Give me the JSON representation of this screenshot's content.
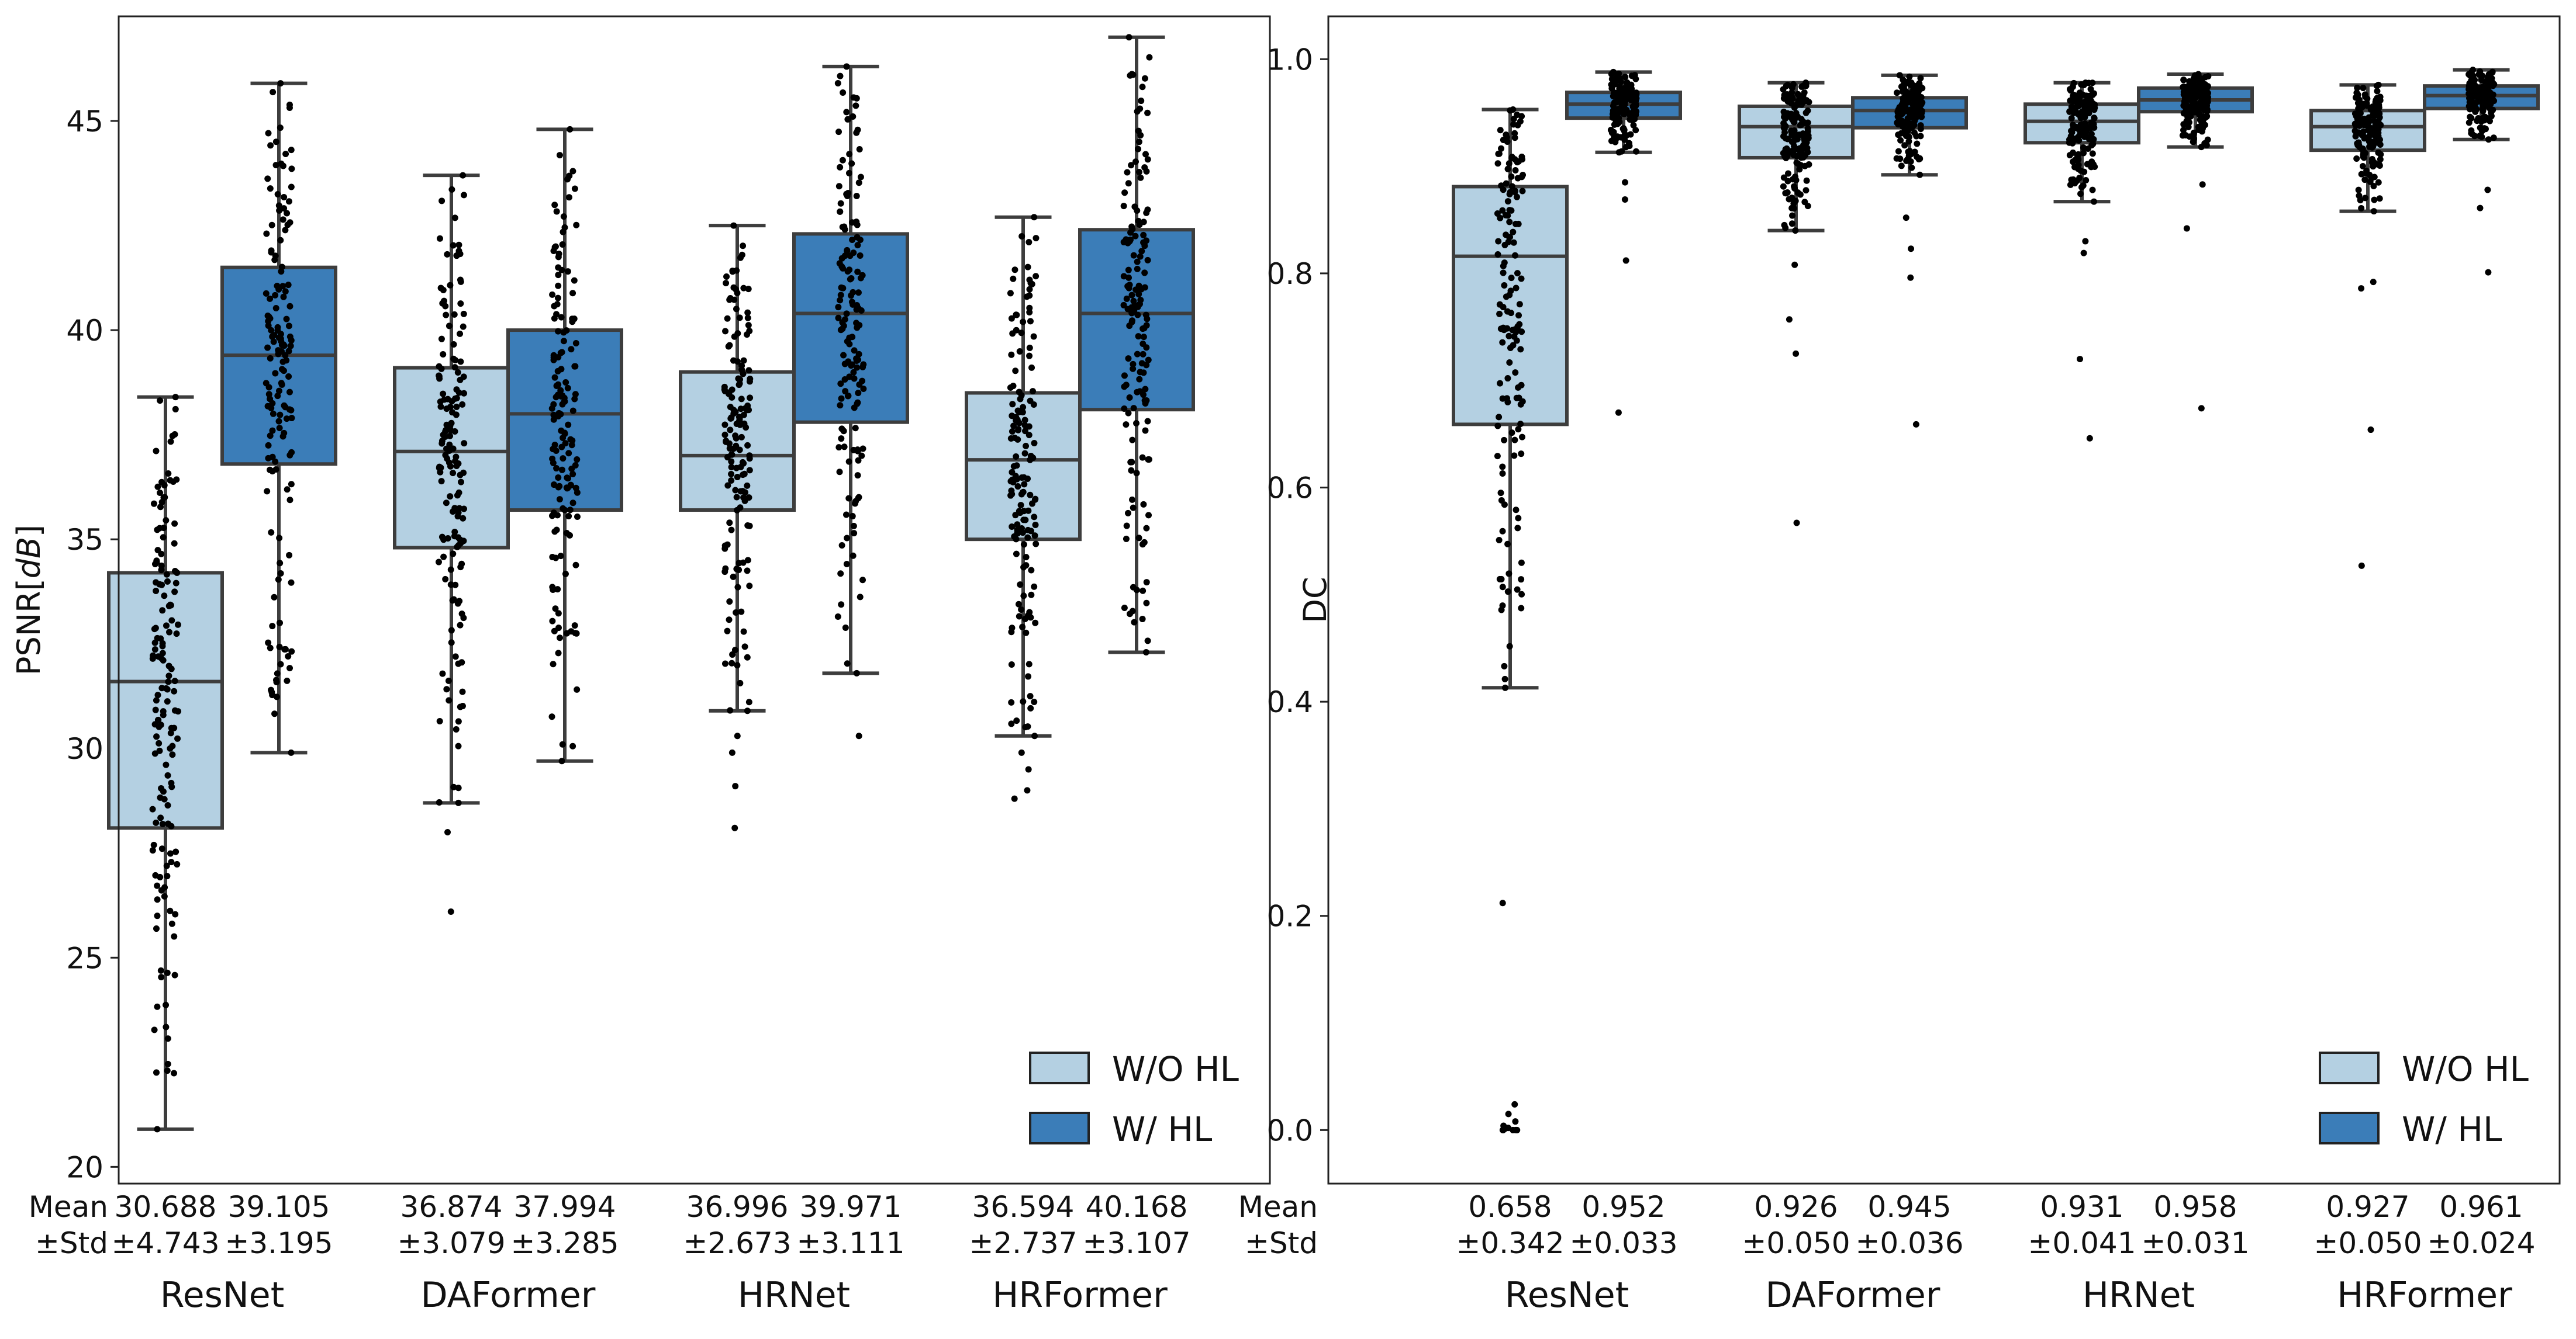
{
  "chart_data": [
    {
      "type": "box",
      "title": "",
      "xlabel": "",
      "ylabel": "PSNR[dB]",
      "ylabel_prefix": "PSNR[",
      "ylabel_italic": "dB",
      "ylabel_suffix": "]",
      "ylim": [
        19.6,
        47.5
      ],
      "yticks": [
        20,
        25,
        30,
        35,
        40,
        45
      ],
      "grid": false,
      "legend_position": "bottom-right",
      "categories": [
        "ResNet",
        "DAFormer",
        "HRNet",
        "HRFormer"
      ],
      "stat_header": [
        "Mean",
        "±Std"
      ],
      "series": [
        {
          "name": "W/O HL",
          "color": "#b4d0e2",
          "boxes": [
            {
              "whisker_low": 20.9,
              "q1": 28.1,
              "median": 31.6,
              "q3": 34.2,
              "whisker_high": 38.4,
              "mean_label": "30.688",
              "std_label": "±4.743",
              "outliers": []
            },
            {
              "whisker_low": 28.7,
              "q1": 34.8,
              "median": 37.1,
              "q3": 39.1,
              "whisker_high": 43.7,
              "mean_label": "36.874",
              "std_label": "±3.079",
              "outliers": [
                28.0,
                26.1
              ]
            },
            {
              "whisker_low": 30.9,
              "q1": 35.7,
              "median": 37.0,
              "q3": 39.0,
              "whisker_high": 42.5,
              "mean_label": "36.996",
              "std_label": "±2.673",
              "outliers": [
                30.3,
                29.9,
                29.1,
                28.1
              ]
            },
            {
              "whisker_low": 30.3,
              "q1": 35.0,
              "median": 36.9,
              "q3": 38.5,
              "whisker_high": 42.7,
              "mean_label": "36.594",
              "std_label": "±2.737",
              "outliers": [
                29.9,
                29.5,
                29.0,
                28.8
              ]
            }
          ]
        },
        {
          "name": "W/ HL",
          "color": "#3b7db8",
          "boxes": [
            {
              "whisker_low": 29.9,
              "q1": 36.8,
              "median": 39.4,
              "q3": 41.5,
              "whisker_high": 45.9,
              "mean_label": "39.105",
              "std_label": "±3.195",
              "outliers": []
            },
            {
              "whisker_low": 29.7,
              "q1": 35.7,
              "median": 38.0,
              "q3": 40.0,
              "whisker_high": 44.8,
              "mean_label": "37.994",
              "std_label": "±3.285",
              "outliers": []
            },
            {
              "whisker_low": 31.8,
              "q1": 37.8,
              "median": 40.4,
              "q3": 42.3,
              "whisker_high": 46.3,
              "mean_label": "39.971",
              "std_label": "±3.111",
              "outliers": [
                30.3
              ]
            },
            {
              "whisker_low": 32.3,
              "q1": 38.1,
              "median": 40.4,
              "q3": 42.4,
              "whisker_high": 47.0,
              "mean_label": "40.168",
              "std_label": "±3.107",
              "outliers": []
            }
          ]
        }
      ]
    },
    {
      "type": "box",
      "title": "",
      "xlabel": "",
      "ylabel": "DC",
      "ylim": [
        -0.05,
        1.04
      ],
      "yticks": [
        "0.0",
        "0.2",
        "0.4",
        "0.6",
        "0.8",
        "1.0"
      ],
      "grid": false,
      "legend_position": "bottom-right",
      "categories": [
        "ResNet",
        "DAFormer",
        "HRNet",
        "HRFormer"
      ],
      "stat_header": [
        "Mean",
        "±Std"
      ],
      "series": [
        {
          "name": "W/O HL",
          "color": "#b4d0e2",
          "boxes": [
            {
              "whisker_low": 0.413,
              "q1": 0.659,
              "median": 0.816,
              "q3": 0.881,
              "whisker_high": 0.953,
              "mean_label": "0.658",
              "std_label": "±0.342",
              "outliers": [
                0.212,
                0.024,
                0.015,
                0.008,
                0.004,
                0.002,
                0.001,
                0.0,
                0.0,
                0.0,
                0.0,
                0.0,
                0.0
              ]
            },
            {
              "whisker_low": 0.84,
              "q1": 0.908,
              "median": 0.937,
              "q3": 0.956,
              "whisker_high": 0.978,
              "mean_label": "0.926",
              "std_label": "±0.050",
              "outliers": [
                0.808,
                0.757,
                0.725,
                0.567
              ]
            },
            {
              "whisker_low": 0.867,
              "q1": 0.922,
              "median": 0.942,
              "q3": 0.958,
              "whisker_high": 0.978,
              "mean_label": "0.931",
              "std_label": "±0.041",
              "outliers": [
                0.83,
                0.819,
                0.72,
                0.646
              ]
            },
            {
              "whisker_low": 0.858,
              "q1": 0.915,
              "median": 0.937,
              "q3": 0.952,
              "whisker_high": 0.976,
              "mean_label": "0.927",
              "std_label": "±0.050",
              "outliers": [
                0.792,
                0.786,
                0.654,
                0.527
              ]
            }
          ]
        },
        {
          "name": "W/ HL",
          "color": "#3b7db8",
          "boxes": [
            {
              "whisker_low": 0.913,
              "q1": 0.945,
              "median": 0.958,
              "q3": 0.969,
              "whisker_high": 0.988,
              "mean_label": "0.952",
              "std_label": "±0.033",
              "outliers": [
                0.885,
                0.869,
                0.812,
                0.67
              ]
            },
            {
              "whisker_low": 0.892,
              "q1": 0.936,
              "median": 0.952,
              "q3": 0.964,
              "whisker_high": 0.985,
              "mean_label": "0.945",
              "std_label": "±0.036",
              "outliers": [
                0.852,
                0.823,
                0.796,
                0.659
              ]
            },
            {
              "whisker_low": 0.918,
              "q1": 0.951,
              "median": 0.962,
              "q3": 0.973,
              "whisker_high": 0.986,
              "mean_label": "0.958",
              "std_label": "±0.031",
              "outliers": [
                0.883,
                0.842,
                0.674
              ]
            },
            {
              "whisker_low": 0.925,
              "q1": 0.954,
              "median": 0.966,
              "q3": 0.975,
              "whisker_high": 0.99,
              "mean_label": "0.961",
              "std_label": "±0.024",
              "outliers": [
                0.878,
                0.861,
                0.801
              ]
            }
          ]
        }
      ]
    }
  ]
}
